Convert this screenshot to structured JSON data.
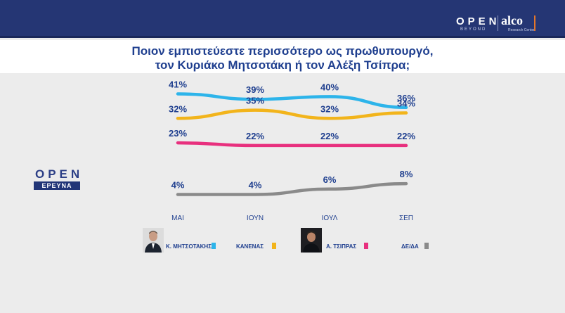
{
  "header": {
    "brand_open": "OPEN",
    "brand_beyond": "BEYOND",
    "brand_alco": "alco",
    "brand_sub": "Research Center"
  },
  "title_lines": [
    "Ποιον εμπιστεύεστε περισσότερο ως πρωθυπουργό,",
    "τον Κυριάκο Μητσοτάκη ή τον Αλέξη Τσίπρα;"
  ],
  "side_logo": {
    "open": "OPEN",
    "erevna": "ΕΡΕΥΝΑ"
  },
  "chart_data": {
    "type": "line",
    "title": "Ποιον εμπιστεύεστε περισσότερο ως πρωθυπουργό, τον Κυριάκο Μητσοτάκη ή τον Αλέξη Τσίπρα;",
    "categories": [
      "ΜΑΙ",
      "ΙΟΥΝ",
      "ΙΟΥΛ",
      "ΣΕΠ"
    ],
    "unit": "%",
    "ylim": [
      0,
      45
    ],
    "grid": false,
    "legend_position": "bottom",
    "series": [
      {
        "name": "Κ. ΜΗΤΣΟΤΑΚΗΣ",
        "color": "#2db4ea",
        "values": [
          41,
          39,
          40,
          36
        ],
        "labels": [
          "41%",
          "39%",
          "40%",
          "36%"
        ]
      },
      {
        "name": "ΚΑΝΕΝΑΣ",
        "color": "#f2b41b",
        "values": [
          32,
          35,
          32,
          34
        ],
        "labels": [
          "32%",
          "35%",
          "32%",
          "34%"
        ]
      },
      {
        "name": "Α. ΤΣΙΠΡΑΣ",
        "color": "#e8307e",
        "values": [
          23,
          22,
          22,
          22
        ],
        "labels": [
          "23%",
          "22%",
          "22%",
          "22%"
        ]
      },
      {
        "name": "ΔΕ/ΔΑ",
        "color": "#8a8a8a",
        "values": [
          4,
          4,
          6,
          8
        ],
        "labels": [
          "4%",
          "4%",
          "6%",
          "8%"
        ]
      }
    ]
  },
  "legend_icons": [
    "mitsotakis-photo",
    "tsipras-photo"
  ]
}
